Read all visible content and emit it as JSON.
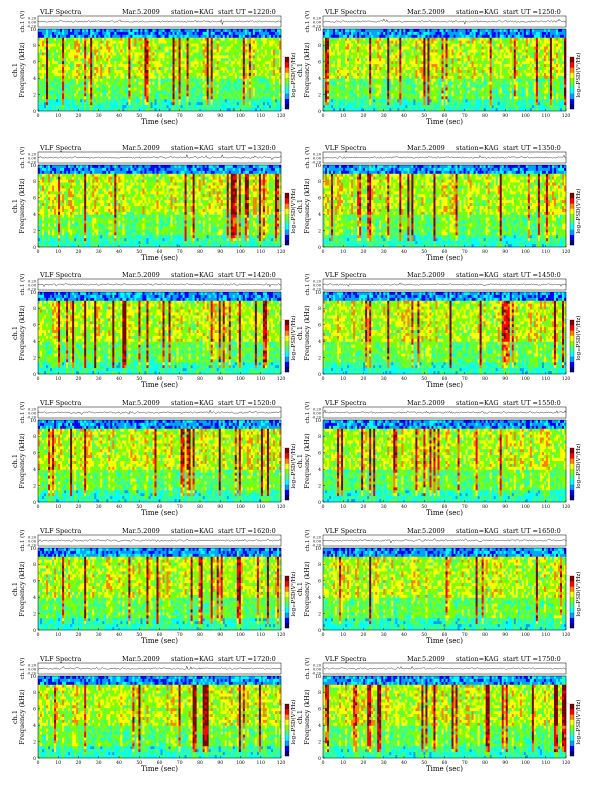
{
  "chart_data": [
    {
      "type": "heatmap",
      "title_left": "VLF Spectra",
      "title_date": "Mar.5.2009",
      "title_station": "station=KAG",
      "title_start": "start UT =1220:0",
      "xlabel": "Time (sec)",
      "ylabel": "Frequency (kHz)",
      "ylabel_top": "ch.1",
      "top_panel_label": "ch.1 (V)",
      "colorbar_label": "log₁₀PSD(V²/Hz)",
      "xlim": [
        0,
        120
      ],
      "ylim": [
        0,
        10
      ],
      "x_ticks": [
        0,
        10,
        20,
        30,
        40,
        50,
        60,
        70,
        80,
        90,
        100,
        110,
        120
      ],
      "y_ticks": [
        0,
        2,
        4,
        6,
        8,
        10
      ],
      "top_ticks": [
        "0.20",
        "0.00",
        "-0.20"
      ],
      "grid": false
    },
    {
      "type": "heatmap",
      "title_left": "VLF Spectra",
      "title_date": "Mar.5.2009",
      "title_station": "station=KAG",
      "title_start": "start UT =1250:0",
      "xlabel": "Time (sec)",
      "ylabel": "Frequency (kHz)",
      "ylabel_top": "ch.1",
      "top_panel_label": "ch.1 (V)",
      "colorbar_label": "log₁₀PSD(V²/Hz)",
      "xlim": [
        0,
        120
      ],
      "ylim": [
        0,
        10
      ],
      "x_ticks": [
        0,
        10,
        20,
        30,
        40,
        50,
        60,
        70,
        80,
        90,
        100,
        110,
        120
      ],
      "y_ticks": [
        0,
        2,
        4,
        6,
        8,
        10
      ],
      "top_ticks": [
        "0.20",
        "0.00",
        "-0.20"
      ],
      "grid": false
    },
    {
      "type": "heatmap",
      "title_left": "VLF Spectra",
      "title_date": "Mar.5.2009",
      "title_station": "station=KAG",
      "title_start": "start UT =1320:0",
      "xlabel": "Time (sec)",
      "ylabel": "Frequency (kHz)",
      "ylabel_top": "ch.1",
      "top_panel_label": "ch.1 (V)",
      "colorbar_label": "log₁₀PSD(V²/Hz)",
      "xlim": [
        0,
        120
      ],
      "ylim": [
        0,
        10
      ],
      "x_ticks": [
        0,
        10,
        20,
        30,
        40,
        50,
        60,
        70,
        80,
        90,
        100,
        110,
        120
      ],
      "y_ticks": [
        0,
        2,
        4,
        6,
        8,
        10
      ],
      "top_ticks": [
        "0.20",
        "0.00",
        "-0.20"
      ],
      "grid": false
    },
    {
      "type": "heatmap",
      "title_left": "VLF Spectra",
      "title_date": "Mar.5.2009",
      "title_station": "station=KAG",
      "title_start": "start UT =1350:0",
      "xlabel": "Time (sec)",
      "ylabel": "Frequency (kHz)",
      "ylabel_top": "ch.1",
      "top_panel_label": "ch.1 (V)",
      "colorbar_label": "log₁₀PSD(V²/Hz)",
      "xlim": [
        0,
        120
      ],
      "ylim": [
        0,
        10
      ],
      "x_ticks": [
        0,
        10,
        20,
        30,
        40,
        50,
        60,
        70,
        80,
        90,
        100,
        110,
        120
      ],
      "y_ticks": [
        0,
        2,
        4,
        6,
        8,
        10
      ],
      "top_ticks": [
        "0.20",
        "0.00",
        "-0.20"
      ],
      "grid": false
    },
    {
      "type": "heatmap",
      "title_left": "VLF Spectra",
      "title_date": "Mar.5.2009",
      "title_station": "station=KAG",
      "title_start": "start UT =1420:0",
      "xlabel": "Time (sec)",
      "ylabel": "Frequency (kHz)",
      "ylabel_top": "ch.1",
      "top_panel_label": "ch.1 (V)",
      "colorbar_label": "log₁₀PSD(V²/Hz)",
      "xlim": [
        0,
        120
      ],
      "ylim": [
        0,
        10
      ],
      "x_ticks": [
        0,
        10,
        20,
        30,
        40,
        50,
        60,
        70,
        80,
        90,
        100,
        110,
        120
      ],
      "y_ticks": [
        0,
        2,
        4,
        6,
        8,
        10
      ],
      "top_ticks": [
        "0.20",
        "0.00",
        "-0.20"
      ],
      "grid": false
    },
    {
      "type": "heatmap",
      "title_left": "VLF Spectra",
      "title_date": "Mar.5.2009",
      "title_station": "station=KAG",
      "title_start": "start UT =1450:0",
      "xlabel": "Time (sec)",
      "ylabel": "Frequency (kHz)",
      "ylabel_top": "ch.1",
      "top_panel_label": "ch.1 (V)",
      "colorbar_label": "log₁₀PSD(V²/Hz)",
      "xlim": [
        0,
        120
      ],
      "ylim": [
        0,
        10
      ],
      "x_ticks": [
        0,
        10,
        20,
        30,
        40,
        50,
        60,
        70,
        80,
        90,
        100,
        110,
        120
      ],
      "y_ticks": [
        0,
        2,
        4,
        6,
        8,
        10
      ],
      "top_ticks": [
        "0.20",
        "0.00",
        "-0.20"
      ],
      "grid": false
    },
    {
      "type": "heatmap",
      "title_left": "VLF Spectra",
      "title_date": "Mar.5.2009",
      "title_station": "station=KAG",
      "title_start": "start UT =1520:0",
      "xlabel": "Time (sec)",
      "ylabel": "Frequency (kHz)",
      "ylabel_top": "ch.1",
      "top_panel_label": "ch.1 (V)",
      "colorbar_label": "log₁₀PSD(V²/Hz)",
      "xlim": [
        0,
        120
      ],
      "ylim": [
        0,
        10
      ],
      "x_ticks": [
        0,
        10,
        20,
        30,
        40,
        50,
        60,
        70,
        80,
        90,
        100,
        110,
        120
      ],
      "y_ticks": [
        0,
        2,
        4,
        6,
        8,
        10
      ],
      "top_ticks": [
        "0.20",
        "0.00",
        "-0.20"
      ],
      "grid": false
    },
    {
      "type": "heatmap",
      "title_left": "VLF Spectra",
      "title_date": "Mar.5.2009",
      "title_station": "station=KAG",
      "title_start": "start UT =1550:0",
      "xlabel": "Time (sec)",
      "ylabel": "Frequency (kHz)",
      "ylabel_top": "ch.1",
      "top_panel_label": "ch.1 (V)",
      "colorbar_label": "log₁₀PSD(V²/Hz)",
      "xlim": [
        0,
        120
      ],
      "ylim": [
        0,
        10
      ],
      "x_ticks": [
        0,
        10,
        20,
        30,
        40,
        50,
        60,
        70,
        80,
        90,
        100,
        110,
        120
      ],
      "y_ticks": [
        0,
        2,
        4,
        6,
        8,
        10
      ],
      "top_ticks": [
        "0.20",
        "0.00",
        "-0.20"
      ],
      "grid": false
    },
    {
      "type": "heatmap",
      "title_left": "VLF Spectra",
      "title_date": "Mar.5.2009",
      "title_station": "station=KAG",
      "title_start": "start UT =1620:0",
      "xlabel": "Time (sec)",
      "ylabel": "Frequency (kHz)",
      "ylabel_top": "ch.1",
      "top_panel_label": "ch.1 (V)",
      "colorbar_label": "log₁₀PSD(V²/Hz)",
      "xlim": [
        0,
        120
      ],
      "ylim": [
        0,
        10
      ],
      "x_ticks": [
        0,
        10,
        20,
        30,
        40,
        50,
        60,
        70,
        80,
        90,
        100,
        110,
        120
      ],
      "y_ticks": [
        0,
        2,
        4,
        6,
        8,
        10
      ],
      "top_ticks": [
        "0.20",
        "0.00",
        "-0.20"
      ],
      "grid": false
    },
    {
      "type": "heatmap",
      "title_left": "VLF Spectra",
      "title_date": "Mar.5.2009",
      "title_station": "station=KAG",
      "title_start": "start UT =1650:0",
      "xlabel": "Time (sec)",
      "ylabel": "Frequency (kHz)",
      "ylabel_top": "ch.1",
      "top_panel_label": "ch.1 (V)",
      "colorbar_label": "log₁₀PSD(V²/Hz)",
      "xlim": [
        0,
        120
      ],
      "ylim": [
        0,
        10
      ],
      "x_ticks": [
        0,
        10,
        20,
        30,
        40,
        50,
        60,
        70,
        80,
        90,
        100,
        110,
        120
      ],
      "y_ticks": [
        0,
        2,
        4,
        6,
        8,
        10
      ],
      "top_ticks": [
        "0.20",
        "0.00",
        "-0.20"
      ],
      "grid": false
    },
    {
      "type": "heatmap",
      "title_left": "VLF Spectra",
      "title_date": "Mar.5.2009",
      "title_station": "station=KAG",
      "title_start": "start UT =1720:0",
      "xlabel": "Time (sec)",
      "ylabel": "Frequency (kHz)",
      "ylabel_top": "ch.1",
      "top_panel_label": "ch.1 (V)",
      "colorbar_label": "log₁₀PSD(V²/Hz)",
      "xlim": [
        0,
        120
      ],
      "ylim": [
        0,
        10
      ],
      "x_ticks": [
        0,
        10,
        20,
        30,
        40,
        50,
        60,
        70,
        80,
        90,
        100,
        110,
        120
      ],
      "y_ticks": [
        0,
        2,
        4,
        6,
        8,
        10
      ],
      "top_ticks": [
        "0.20",
        "0.00",
        "-0.20"
      ],
      "grid": false
    },
    {
      "type": "heatmap",
      "title_left": "VLF Spectra",
      "title_date": "Mar.5.2009",
      "title_station": "station=KAG",
      "title_start": "start UT =1750:0",
      "xlabel": "Time (sec)",
      "ylabel": "Frequency (kHz)",
      "ylabel_top": "ch.1",
      "top_panel_label": "ch.1 (V)",
      "colorbar_label": "log₁₀PSD(V²/Hz)",
      "xlim": [
        0,
        120
      ],
      "ylim": [
        0,
        10
      ],
      "x_ticks": [
        0,
        10,
        20,
        30,
        40,
        50,
        60,
        70,
        80,
        90,
        100,
        110,
        120
      ],
      "y_ticks": [
        0,
        2,
        4,
        6,
        8,
        10
      ],
      "top_ticks": [
        "0.20",
        "0.00",
        "-0.20"
      ],
      "grid": false
    }
  ],
  "colormap": [
    "#000080",
    "#0000ff",
    "#00a0ff",
    "#00ffff",
    "#40ff80",
    "#80ff00",
    "#ffff00",
    "#ff8000",
    "#ff0000",
    "#800000"
  ],
  "colorbar_ticks": [
    "-",
    "-",
    "-",
    "-"
  ]
}
